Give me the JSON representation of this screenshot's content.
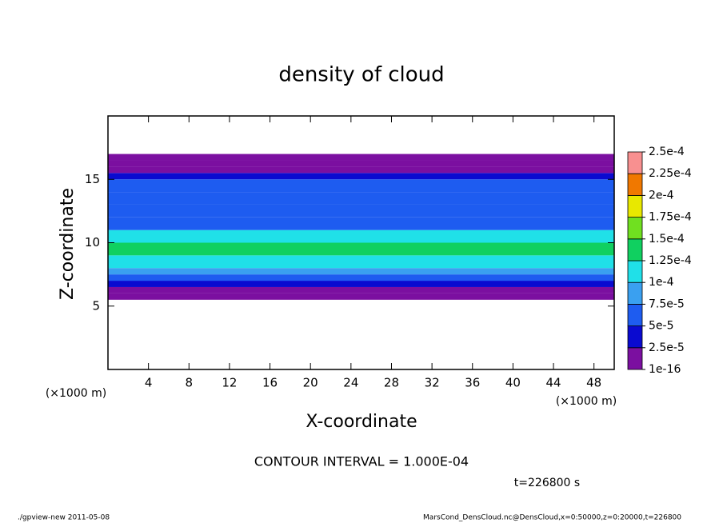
{
  "chart_data": {
    "type": "heatmap",
    "title": "density of cloud",
    "x_label": "X-coordinate",
    "y_label": "Z-coordinate",
    "x_unit_left": "(×1000 m)",
    "x_unit_right": "(×1000 m)",
    "xlim": [
      0,
      50
    ],
    "xticks": [
      4,
      8,
      12,
      16,
      20,
      24,
      28,
      32,
      36,
      40,
      44,
      48
    ],
    "ylim": [
      0,
      20
    ],
    "yticks": [
      5,
      10,
      15
    ],
    "z_bins": [
      5.5,
      6,
      6.5,
      7,
      7.5,
      8,
      9,
      10,
      11,
      12,
      13,
      14,
      15,
      15.5,
      16,
      16.5,
      17
    ],
    "values": [
      1e-16,
      2e-05,
      4e-05,
      6e-05,
      8e-05,
      0.00011,
      0.00013,
      0.0001,
      7e-05,
      6e-05,
      5.5e-05,
      5e-05,
      4.5e-05,
      2e-05,
      1e-16,
      1e-16
    ],
    "colorbar": {
      "levels": [
        {
          "value": 1e-16,
          "label": "1e-16"
        },
        {
          "value": 2.5e-05,
          "label": "2.5e-5"
        },
        {
          "value": 5e-05,
          "label": "5e-5"
        },
        {
          "value": 7.5e-05,
          "label": "7.5e-5"
        },
        {
          "value": 0.0001,
          "label": "1e-4"
        },
        {
          "value": 0.000125,
          "label": "1.25e-4"
        },
        {
          "value": 0.00015,
          "label": "1.5e-4"
        },
        {
          "value": 0.000175,
          "label": "1.75e-4"
        },
        {
          "value": 0.0002,
          "label": "2e-4"
        },
        {
          "value": 0.000225,
          "label": "2.25e-4"
        },
        {
          "value": 0.00025,
          "label": "2.5e-4"
        }
      ],
      "colors": [
        "#7b0fa0",
        "#0a0ad0",
        "#1e5cf0",
        "#3aa0f0",
        "#20e0e8",
        "#10d060",
        "#70e020",
        "#e8e800",
        "#f07800",
        "#f89090"
      ]
    },
    "contour_note": "CONTOUR INTERVAL = 1.000E-04",
    "time_note": "t=226800 s",
    "footer_left": "./gpview-new  2011-05-08",
    "footer_right": "MarsCond_DensCloud.nc@DensCloud,x=0:50000,z=0:20000,t=226800"
  }
}
